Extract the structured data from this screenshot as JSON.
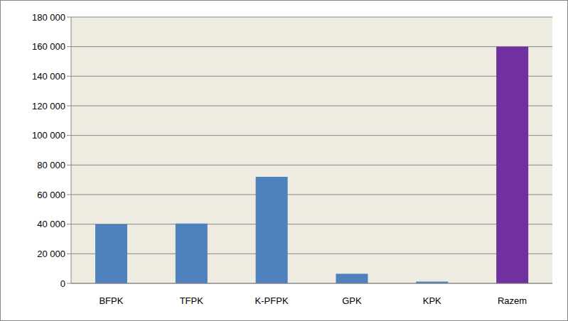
{
  "chart_data": {
    "type": "bar",
    "categories": [
      "BFPK",
      "TFPK",
      "K-PFPK",
      "GPK",
      "KPK",
      "Razem"
    ],
    "values": [
      40000,
      40500,
      72000,
      6500,
      1200,
      160000
    ],
    "colors": [
      "#4f81bd",
      "#4f81bd",
      "#4f81bd",
      "#4f81bd",
      "#4f81bd",
      "#7030a0"
    ],
    "ylim": [
      0,
      180000
    ],
    "yticks": [
      0,
      {
        "value": 20000,
        "label": "20 000"
      },
      {
        "value": 40000,
        "label": "40 000"
      },
      {
        "value": 60000,
        "label": "60 000"
      },
      {
        "value": 80000,
        "label": "80 000"
      },
      {
        "value": 100000,
        "label": "100 000"
      },
      {
        "value": 120000,
        "label": "120 000"
      },
      {
        "value": 140000,
        "label": "140 000"
      },
      {
        "value": 160000,
        "label": "160 000"
      },
      {
        "value": 180000,
        "label": "180 000"
      }
    ],
    "grid": true
  }
}
